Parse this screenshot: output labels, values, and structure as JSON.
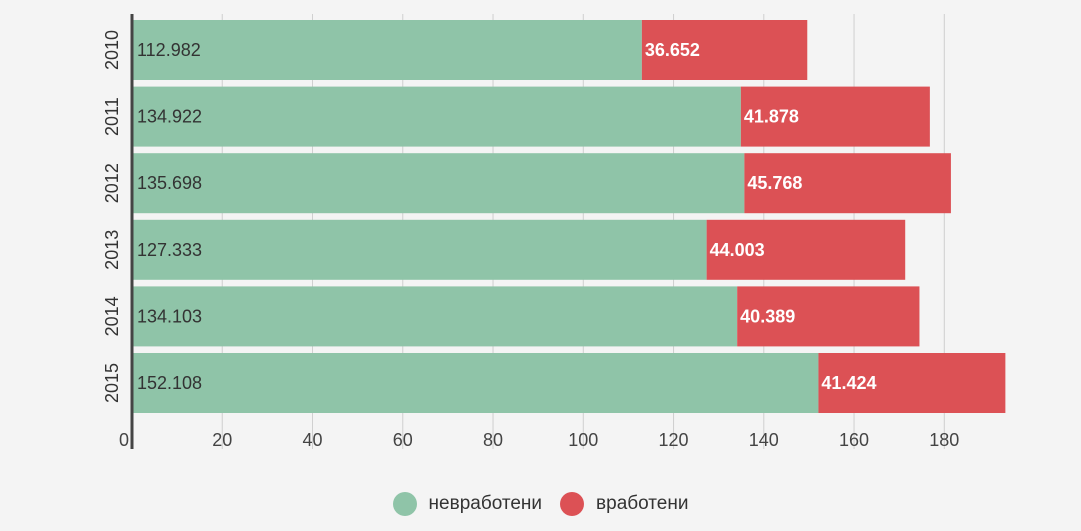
{
  "chart_data": {
    "type": "bar",
    "orientation": "horizontal",
    "stacked": true,
    "categories": [
      "2010",
      "2011",
      "2012",
      "2013",
      "2014",
      "2015"
    ],
    "series": [
      {
        "name": "невработени",
        "color": "#8fc4a8",
        "values": [
          112.982,
          134.922,
          135.698,
          127.333,
          134.103,
          152.108
        ],
        "labels": [
          "112.982",
          "134.922",
          "135.698",
          "127.333",
          "134.103",
          "152.108"
        ]
      },
      {
        "name": "вработени",
        "color": "#dc5155",
        "values": [
          36.652,
          41.878,
          45.768,
          44.003,
          40.389,
          41.424
        ],
        "labels": [
          "36.652",
          "41.878",
          "45.768",
          "44.003",
          "40.389",
          "41.424"
        ]
      }
    ],
    "x_ticks": [
      "0",
      "20",
      "40",
      "60",
      "80",
      "100",
      "120",
      "140",
      "160",
      "180"
    ],
    "xlim": [
      0,
      195
    ],
    "grid": true,
    "legend_position": "bottom"
  }
}
